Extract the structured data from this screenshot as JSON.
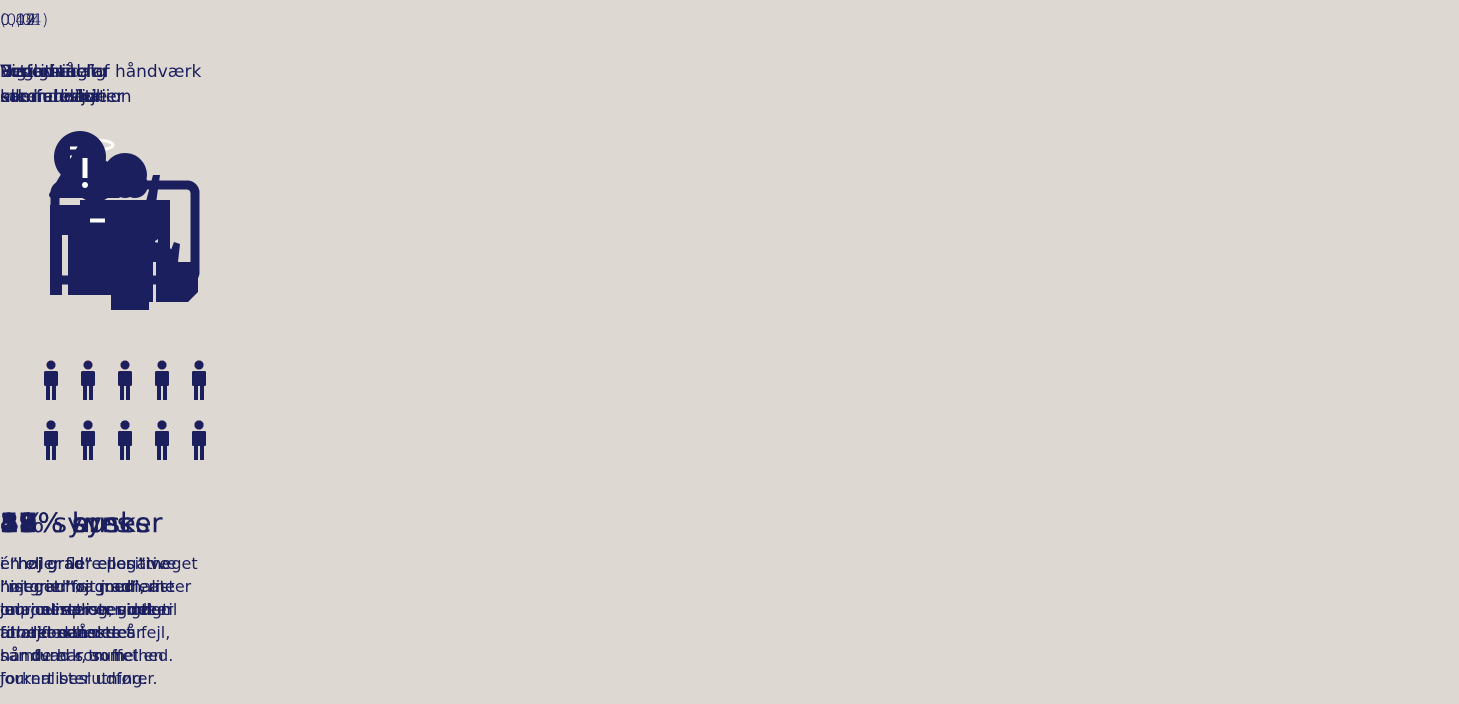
{
  "columns": [
    {
      "coefficient": "0,14",
      "title": "Vigtighed for\nsamfundet",
      "headline_value": 49,
      "headline_text": "% synes",
      "description": "i ”høj grad” eller\n”meget høj grad”, at\njournalister er vigtig\nfor det danske\nsamfund som helhed.",
      "highlighted": 5,
      "figures": 10
    },
    {
      "coefficient": "0,42",
      "title": "Beundring af håndværk\neller arbejde",
      "headline_value": 17,
      "headline_text": "% er",
      "description": "i ”høj grad” eller\n”meget høj grad”\nimponeret over det\narbejde eller det\nhåndværk, som\njournalister udfører.",
      "highlighted": 2,
      "figures": 10
    },
    {
      "coefficient": "(0,04)",
      "title": "Positive\nmediehistorier",
      "headline_value": 25,
      "headline_text": "% husker",
      "description": "én eller flere positive\nhistorier fra medierne\nom journalister inden\nfor det seneste år.",
      "highlighted": 3,
      "figures": 10
    },
    {
      "coefficient": "0,09",
      "title": "Negative\nmediehistorier",
      "headline_value": 52,
      "headline_text": "% husker",
      "description": "én eller flere negative\nhistorier fra medierne\nom journalister inden\nfor det seneste år.",
      "highlighted": 5,
      "figures": 10
    },
    {
      "coefficient": "(0,01)",
      "title": "Letforståelig\nkommunikation",
      "headline_value": 38,
      "headline_text": "% synes",
      "description": "i ”høj grad” eller ”meget\nhøj grad” at journalister\ntaler et sprog, som er\ntil at forstå.",
      "highlighted": 4,
      "figures": 10
    },
    {
      "coefficient": "0,17",
      "title": "Evnen til at\nerkende fejl",
      "headline_value": 4,
      "headline_text": "% synes",
      "description": "i ”høj grad” eller\n”meget høj grad”, at\njournalister er gode til\nat erkende deres fejl,\nnår de har truffet en\nforkert beslutning.",
      "highlighted": 0,
      "figures": 10
    }
  ]
}
